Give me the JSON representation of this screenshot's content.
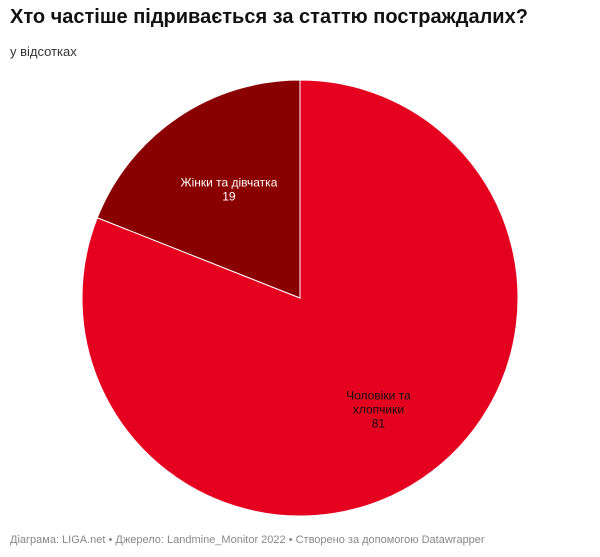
{
  "title": "Хто частіше підривається за статтю постраждалих?",
  "subtitle": "у відсотках",
  "footer": "Діаграма: LIGA.net • Джерело: Landmine_Monitor 2022 • Створено за допомогою Datawrapper",
  "chart_data": {
    "type": "pie",
    "title": "Хто частіше підривається за статтю постраждалих?",
    "subtitle": "у відсотках",
    "slices": [
      {
        "label_lines": [
          "Чоловіки та",
          "хлопчики"
        ],
        "value": 81,
        "color": "#e60020",
        "label_color": "#111111"
      },
      {
        "label_lines": [
          "Жінки та дівчатка"
        ],
        "value": 19,
        "color": "#8a0000",
        "label_color": "#ffffff"
      }
    ],
    "start": "12 o'clock",
    "direction": "clockwise"
  }
}
